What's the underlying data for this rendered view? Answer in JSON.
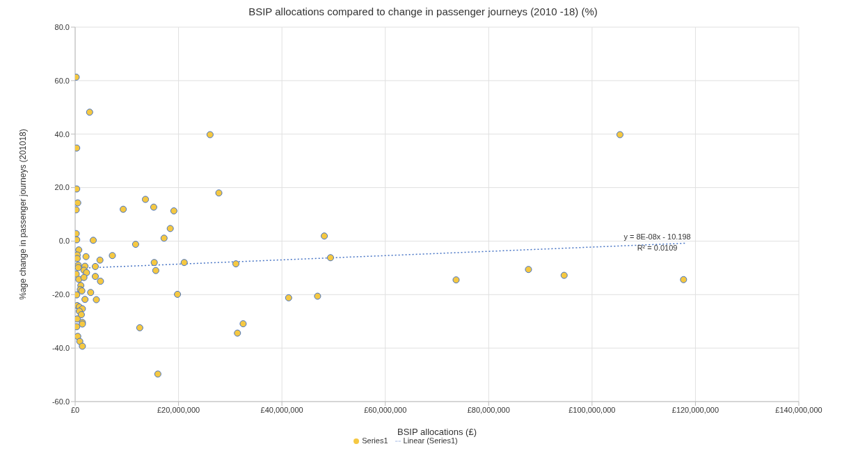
{
  "chart_data": {
    "type": "scatter",
    "title": "BSIP allocations compared to change in passenger journeys (2010 -18) (%)",
    "xlabel": "BSIP allocations (£)",
    "ylabel": "%age change in passenger journeys (201018)",
    "xlim": [
      0,
      140000000
    ],
    "xticks": [
      {
        "value": 0,
        "label": "£0"
      },
      {
        "value": 20000000,
        "label": "£20,000,000"
      },
      {
        "value": 40000000,
        "label": "£40,000,000"
      },
      {
        "value": 60000000,
        "label": "£60,000,000"
      },
      {
        "value": 80000000,
        "label": "£80,000,000"
      },
      {
        "value": 100000000,
        "label": "£100,000,000"
      },
      {
        "value": 120000000,
        "label": "£120,000,000"
      },
      {
        "value": 140000000,
        "label": "£140,000,000"
      }
    ],
    "ylim": [
      -60,
      80
    ],
    "yticks": [
      {
        "value": -60,
        "label": "-60.0"
      },
      {
        "value": -40,
        "label": "-40.0"
      },
      {
        "value": -20,
        "label": "-20.0"
      },
      {
        "value": 0,
        "label": "0.0"
      },
      {
        "value": 20,
        "label": "20.0"
      },
      {
        "value": 40,
        "label": "40.0"
      },
      {
        "value": 60,
        "label": "60.0"
      },
      {
        "value": 80,
        "label": "80.0"
      }
    ],
    "grid": true,
    "legend": "bottom",
    "series": [
      {
        "name": "Series1",
        "marker": "circle",
        "color": "#f5c842",
        "x": [
          200000,
          2800000,
          26100000,
          300000,
          300000,
          27800000,
          13600000,
          500000,
          15200000,
          9300000,
          200000,
          19100000,
          18400000,
          200000,
          17200000,
          300000,
          3500000,
          11700000,
          700000,
          400000,
          400000,
          2100000,
          7200000,
          4800000,
          15300000,
          21100000,
          600000,
          600000,
          1900000,
          3900000,
          1700000,
          15600000,
          200000,
          2200000,
          700000,
          1700000,
          3900000,
          4900000,
          1100000,
          1000000,
          1300000,
          3000000,
          19800000,
          300000,
          1900000,
          4100000,
          400000,
          800000,
          1400000,
          800000,
          1200000,
          400000,
          1400000,
          1400000,
          300000,
          12500000,
          500000,
          900000,
          1400000,
          16000000,
          48200000,
          31100000,
          49400000,
          73700000,
          41300000,
          46900000,
          31400000,
          32500000,
          105400000,
          87700000,
          94600000,
          117700000
        ],
        "values": [
          61.3,
          48.2,
          39.8,
          34.8,
          19.5,
          18.0,
          15.6,
          14.3,
          12.7,
          11.9,
          11.7,
          11.3,
          4.7,
          2.8,
          1.1,
          0.5,
          0.3,
          -1.2,
          -3.3,
          -5.2,
          -6.5,
          -5.8,
          -5.4,
          -7.1,
          -8.0,
          -8.0,
          -9.0,
          -9.9,
          -9.4,
          -9.5,
          -10.9,
          -11.0,
          -12.3,
          -11.8,
          -14.3,
          -13.6,
          -13.2,
          -15.0,
          -16.6,
          -18.1,
          -18.6,
          -19.2,
          -19.9,
          -20.1,
          -21.8,
          -21.9,
          -24.1,
          -24.6,
          -25.3,
          -26.2,
          -27.5,
          -29.1,
          -30.4,
          -31.0,
          -32.0,
          -32.4,
          -35.6,
          -37.5,
          -39.3,
          -49.7,
          1.9,
          -8.5,
          -6.2,
          -14.5,
          -21.2,
          -20.6,
          -34.4,
          -30.9,
          39.8,
          -10.6,
          -12.8,
          -14.4
        ]
      },
      {
        "name": "Linear (Series1)",
        "type": "line",
        "color": "#4472c4",
        "line_style": "dotted",
        "x": [
          0,
          118000000
        ],
        "values": [
          -10.2,
          -0.8
        ]
      }
    ],
    "annotations": [
      "y = 8E-08x - 10.198",
      "R² = 0.0109"
    ]
  }
}
